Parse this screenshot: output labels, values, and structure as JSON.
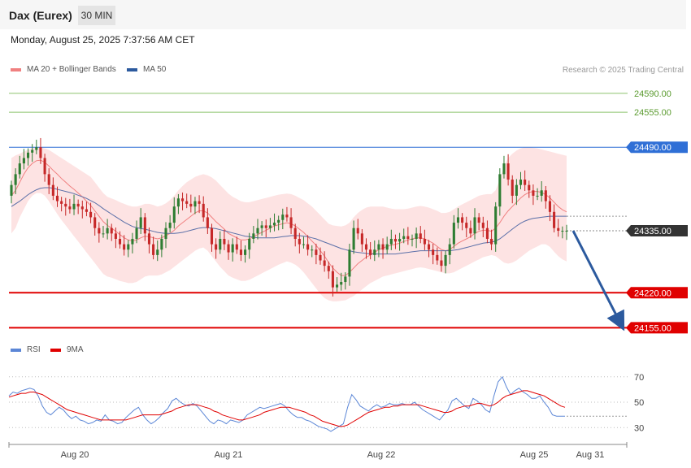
{
  "header": {
    "instrument": "Dax (Eurex)",
    "timeframe": "30 MIN",
    "datetime": "Monday, August 25, 2025 7:37:56 AM CET",
    "credit": "Research © 2025 Trading Central"
  },
  "legend_main": [
    {
      "label": "MA 20 + Bollinger Bands",
      "color": "#f08080"
    },
    {
      "label": "MA 50",
      "color": "#2c5a9e"
    }
  ],
  "legend_rsi": [
    {
      "label": "RSI",
      "color": "#5b86d6"
    },
    {
      "label": "9MA",
      "color": "#e00000"
    }
  ],
  "colors": {
    "up": "#2e7d32",
    "down": "#c62828",
    "band_fill": "#fde3e3",
    "ma20": "#f08080",
    "ma50": "#5a6fa8",
    "target_green": "#8cc36e",
    "pivot_blue": "#2f6fd6",
    "support_red": "#e00000",
    "last_price": "#333333",
    "arrow": "#2c5a9e"
  },
  "chart_data": [
    {
      "type": "candlestick",
      "title": "Dax (Eurex)",
      "timeframe": "30 MIN",
      "x_tick_labels": [
        "Aug 20",
        "Aug 21",
        "Aug 22",
        "Aug 25",
        "Aug 31"
      ],
      "ylim": [
        24130,
        24620
      ],
      "levels": [
        {
          "value": 24590.0,
          "label": "24590.00",
          "kind": "target"
        },
        {
          "value": 24555.0,
          "label": "24555.00",
          "kind": "target"
        },
        {
          "value": 24490.0,
          "label": "24490.00",
          "kind": "pivot"
        },
        {
          "value": 24335.0,
          "label": "24335.00",
          "kind": "last"
        },
        {
          "value": 24220.0,
          "label": "24220.00",
          "kind": "support"
        },
        {
          "value": 24155.0,
          "label": "24155.00",
          "kind": "support"
        }
      ],
      "close": [
        24420,
        24440,
        24460,
        24470,
        24480,
        24485,
        24490,
        24470,
        24440,
        24420,
        24400,
        24390,
        24385,
        24380,
        24375,
        24385,
        24380,
        24375,
        24370,
        24360,
        24340,
        24330,
        24330,
        24340,
        24330,
        24320,
        24310,
        24300,
        24310,
        24320,
        24340,
        24360,
        24330,
        24310,
        24290,
        24300,
        24320,
        24340,
        24350,
        24380,
        24395,
        24390,
        24385,
        24380,
        24390,
        24385,
        24360,
        24340,
        24310,
        24300,
        24320,
        24310,
        24295,
        24310,
        24300,
        24290,
        24300,
        24320,
        24330,
        24340,
        24345,
        24340,
        24345,
        24350,
        24355,
        24365,
        24360,
        24340,
        24320,
        24310,
        24310,
        24300,
        24300,
        24290,
        24280,
        24270,
        24260,
        24230,
        24235,
        24240,
        24250,
        24300,
        24340,
        24330,
        24310,
        24300,
        24290,
        24300,
        24310,
        24300,
        24310,
        24320,
        24315,
        24320,
        24325,
        24320,
        24320,
        24330,
        24320,
        24310,
        24300,
        24290,
        24280,
        24270,
        24290,
        24310,
        24350,
        24360,
        24350,
        24340,
        24330,
        24360,
        24350,
        24340,
        24320,
        24310,
        24380,
        24440,
        24460,
        24430,
        24400,
        24420,
        24430,
        24420,
        24410,
        24400,
        24400,
        24410,
        24390,
        24370,
        24340,
        24335,
        24335,
        24335
      ],
      "ma20": [
        24400,
        24410,
        24425,
        24440,
        24452,
        24460,
        24465,
        24466,
        24462,
        24455,
        24447,
        24440,
        24432,
        24425,
        24418,
        24412,
        24405,
        24398,
        24390,
        24382,
        24372,
        24362,
        24352,
        24345,
        24340,
        24334,
        24328,
        24322,
        24318,
        24316,
        24318,
        24322,
        24325,
        24324,
        24322,
        24320,
        24322,
        24326,
        24330,
        24336,
        24344,
        24350,
        24356,
        24362,
        24368,
        24372,
        24372,
        24368,
        24360,
        24352,
        24345,
        24338,
        24330,
        24326,
        24322,
        24318,
        24318,
        24320,
        24324,
        24328,
        24332,
        24336,
        24340,
        24344,
        24346,
        24348,
        24350,
        24348,
        24344,
        24338,
        24332,
        24324,
        24316,
        24308,
        24298,
        24288,
        24276,
        24266,
        24258,
        24252,
        24252,
        24258,
        24266,
        24274,
        24280,
        24286,
        24290,
        24295,
        24300,
        24303,
        24306,
        24308,
        24310,
        24312,
        24315,
        24318,
        24320,
        24322,
        24322,
        24320,
        24316,
        24312,
        24306,
        24300,
        24298,
        24300,
        24306,
        24312,
        24316,
        24320,
        24324,
        24330,
        24334,
        24336,
        24336,
        24334,
        24340,
        24350,
        24362,
        24372,
        24380,
        24388,
        24396,
        24402,
        24406,
        24408,
        24408,
        24406,
        24402,
        24396,
        24388,
        24380,
        24374,
        24370
      ],
      "bb_upper": [
        24470,
        24475,
        24478,
        24482,
        24485,
        24488,
        24490,
        24490,
        24488,
        24485,
        24480,
        24475,
        24470,
        24465,
        24460,
        24455,
        24450,
        24445,
        24440,
        24435,
        24425,
        24415,
        24405,
        24398,
        24395,
        24392,
        24388,
        24385,
        24382,
        24380,
        24380,
        24382,
        24385,
        24385,
        24383,
        24380,
        24382,
        24386,
        24392,
        24400,
        24410,
        24418,
        24425,
        24430,
        24435,
        24438,
        24440,
        24438,
        24434,
        24428,
        24420,
        24412,
        24404,
        24398,
        24394,
        24390,
        24388,
        24388,
        24390,
        24392,
        24394,
        24396,
        24398,
        24400,
        24402,
        24403,
        24404,
        24403,
        24400,
        24396,
        24392,
        24386,
        24380,
        24372,
        24364,
        24356,
        24348,
        24345,
        24344,
        24343,
        24345,
        24350,
        24360,
        24368,
        24374,
        24378,
        24380,
        24380,
        24380,
        24380,
        24378,
        24376,
        24375,
        24375,
        24375,
        24376,
        24378,
        24380,
        24381,
        24380,
        24378,
        24375,
        24372,
        24368,
        24368,
        24370,
        24375,
        24380,
        24384,
        24388,
        24392,
        24396,
        24400,
        24402,
        24403,
        24403,
        24410,
        24430,
        24455,
        24470,
        24478,
        24484,
        24488,
        24490,
        24490,
        24489,
        24488,
        24486,
        24484,
        24482,
        24480,
        24478,
        24476,
        24474
      ],
      "bb_lower": [
        24330,
        24340,
        24360,
        24375,
        24390,
        24400,
        24405,
        24405,
        24400,
        24390,
        24378,
        24366,
        24355,
        24345,
        24335,
        24325,
        24315,
        24305,
        24295,
        24285,
        24275,
        24265,
        24255,
        24250,
        24248,
        24245,
        24242,
        24240,
        24238,
        24238,
        24240,
        24245,
        24250,
        24252,
        24252,
        24252,
        24254,
        24258,
        24262,
        24268,
        24274,
        24280,
        24286,
        24292,
        24298,
        24302,
        24304,
        24298,
        24288,
        24278,
        24268,
        24260,
        24252,
        24248,
        24245,
        24242,
        24242,
        24244,
        24248,
        24252,
        24256,
        24260,
        24264,
        24268,
        24272,
        24275,
        24278,
        24276,
        24272,
        24266,
        24258,
        24248,
        24238,
        24228,
        24218,
        24210,
        24206,
        24204,
        24204,
        24205,
        24206,
        24210,
        24214,
        24220,
        24226,
        24232,
        24238,
        24242,
        24246,
        24250,
        24252,
        24254,
        24256,
        24258,
        24260,
        24262,
        24264,
        24266,
        24267,
        24266,
        24264,
        24262,
        24260,
        24258,
        24256,
        24256,
        24258,
        24262,
        24266,
        24270,
        24274,
        24278,
        24282,
        24286,
        24288,
        24290,
        24288,
        24282,
        24276,
        24274,
        24276,
        24280,
        24286,
        24292,
        24298,
        24302,
        24306,
        24310,
        24310,
        24305,
        24296,
        24288,
        24282,
        24278
      ],
      "ma50": [
        24380,
        24385,
        24390,
        24396,
        24402,
        24407,
        24411,
        24414,
        24415,
        24415,
        24414,
        24412,
        24410,
        24408,
        24406,
        24404,
        24401,
        24398,
        24395,
        24391,
        24387,
        24382,
        24376,
        24371,
        24366,
        24361,
        24356,
        24351,
        24347,
        24343,
        24341,
        24339,
        24338,
        24336,
        24334,
        24332,
        24331,
        24330,
        24330,
        24330,
        24331,
        24332,
        24334,
        24336,
        24338,
        24340,
        24341,
        24341,
        24340,
        24339,
        24337,
        24335,
        24333,
        24331,
        24329,
        24327,
        24325,
        24324,
        24323,
        24322,
        24322,
        24322,
        24322,
        24322,
        24323,
        24324,
        24325,
        24326,
        24326,
        24326,
        24325,
        24324,
        24322,
        24320,
        24317,
        24314,
        24311,
        24308,
        24305,
        24302,
        24300,
        24298,
        24296,
        24295,
        24294,
        24293,
        24292,
        24292,
        24292,
        24292,
        24292,
        24292,
        24292,
        24293,
        24294,
        24295,
        24296,
        24297,
        24298,
        24298,
        24298,
        24298,
        24298,
        24298,
        24298,
        24298,
        24299,
        24300,
        24302,
        24304,
        24306,
        24308,
        24310,
        24312,
        24313,
        24314,
        24316,
        24320,
        24326,
        24332,
        24338,
        24344,
        24349,
        24353,
        24356,
        24358,
        24359,
        24360,
        24361,
        24362,
        24362,
        24362,
        24362,
        24362
      ],
      "x_label": "",
      "y_label": ""
    },
    {
      "type": "line",
      "title": "",
      "series": [
        {
          "name": "RSI",
          "color": "#5b86d6",
          "values": [
            55,
            58,
            57,
            59,
            60,
            61,
            60,
            55,
            47,
            42,
            40,
            43,
            46,
            44,
            40,
            37,
            39,
            36,
            35,
            33,
            34,
            36,
            35,
            40,
            36,
            35,
            33,
            34,
            38,
            41,
            44,
            46,
            40,
            36,
            33,
            35,
            38,
            42,
            45,
            51,
            53,
            50,
            48,
            47,
            49,
            47,
            43,
            39,
            35,
            33,
            36,
            35,
            33,
            36,
            35,
            34,
            36,
            40,
            42,
            44,
            46,
            45,
            46,
            47,
            48,
            49,
            47,
            43,
            40,
            38,
            38,
            36,
            35,
            33,
            31,
            30,
            29,
            27,
            29,
            31,
            33,
            46,
            56,
            52,
            47,
            45,
            43,
            46,
            48,
            46,
            47,
            49,
            48,
            48,
            49,
            48,
            48,
            50,
            47,
            44,
            42,
            40,
            38,
            36,
            40,
            44,
            51,
            53,
            50,
            47,
            45,
            53,
            51,
            48,
            44,
            42,
            55,
            66,
            70,
            62,
            56,
            59,
            61,
            58,
            56,
            53,
            53,
            55,
            50,
            46,
            40,
            39,
            39,
            39
          ]
        },
        {
          "name": "9MA",
          "color": "#e00000",
          "values": [
            54,
            55,
            56,
            57,
            57,
            58,
            58,
            57,
            56,
            54,
            52,
            50,
            48,
            46,
            44,
            43,
            42,
            41,
            40,
            39,
            38,
            37,
            36,
            36,
            36,
            36,
            36,
            36,
            36,
            37,
            38,
            39,
            40,
            40,
            40,
            40,
            40,
            41,
            42,
            43,
            45,
            46,
            47,
            48,
            48,
            48,
            47,
            46,
            45,
            43,
            42,
            40,
            39,
            38,
            37,
            36,
            36,
            37,
            38,
            39,
            40,
            42,
            43,
            44,
            45,
            46,
            46,
            46,
            45,
            44,
            43,
            42,
            40,
            39,
            37,
            35,
            34,
            33,
            32,
            31,
            31,
            32,
            34,
            36,
            38,
            40,
            42,
            43,
            44,
            45,
            46,
            46,
            47,
            47,
            48,
            48,
            48,
            48,
            48,
            47,
            46,
            45,
            44,
            43,
            42,
            42,
            43,
            45,
            46,
            47,
            47,
            48,
            49,
            49,
            48,
            47,
            48,
            50,
            53,
            55,
            56,
            57,
            58,
            59,
            59,
            58,
            57,
            56,
            55,
            53,
            51,
            49,
            47,
            46
          ]
        }
      ],
      "y_ticks": [
        30,
        50,
        70
      ],
      "ylim": [
        18,
        82
      ],
      "x_label": "",
      "y_label": ""
    }
  ]
}
